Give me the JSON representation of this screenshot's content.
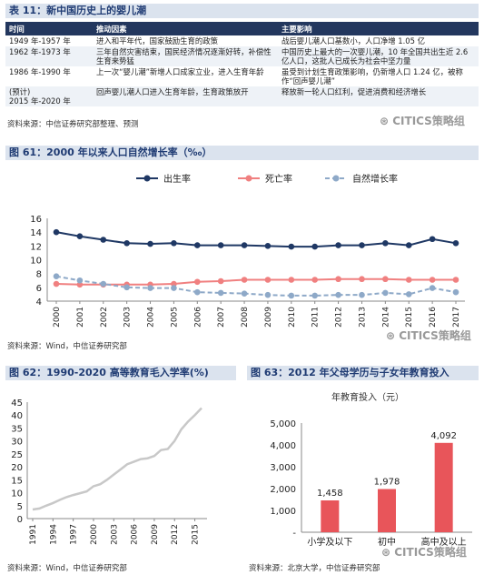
{
  "table": {
    "title": "表 11：新中国历史上的婴儿潮",
    "headers": [
      "时间",
      "推动因素",
      "主要影响"
    ],
    "rows": [
      [
        "1949 年-1957 年",
        "进入和平年代，国家鼓励生育的政策",
        "战后婴儿潮人口基数小，人口净增 1.05 亿"
      ],
      [
        "1962 年-1973 年",
        "三年自然灾害结束，国民经济情况逐渐好转，补偿性生育来势猛",
        "中国历史上最大的一次婴儿潮，10 年全国共出生近 2.6 亿人口，这批人已成长为社会中坚力量"
      ],
      [
        "1986 年-1990 年",
        "上一次“婴儿潮”新增人口成家立业，进入生育年龄",
        "虽受到计划生育政策影响，仍新增人口 1.24 亿，被称作“回声婴儿潮”"
      ],
      [
        "(预计)\n2015 年-2020 年",
        "回声婴儿潮人口进入生育年龄，生育政策放开",
        "释放新一轮人口红利，促进消费和经济增长"
      ]
    ],
    "source": "资料来源：中信证券研究部整理、预测"
  },
  "watermarks": [
    "CITICS策略组",
    "CITICS策略组",
    "CITICS策略组"
  ],
  "chart_data": [
    {
      "type": "line",
      "title": "图 61：2000 年以来人口自然增长率（‰）",
      "x": [
        "2000",
        "2001",
        "2002",
        "2003",
        "2004",
        "2005",
        "2006",
        "2007",
        "2008",
        "2009",
        "2010",
        "2011",
        "2012",
        "2013",
        "2014",
        "2015",
        "2016",
        "2017"
      ],
      "series": [
        {
          "name": "出生率",
          "color": "#1f3864",
          "dash": "none",
          "values": [
            14.0,
            13.4,
            12.9,
            12.4,
            12.3,
            12.4,
            12.1,
            12.1,
            12.1,
            12.0,
            11.9,
            11.9,
            12.1,
            12.1,
            12.4,
            12.1,
            13.0,
            12.4
          ]
        },
        {
          "name": "死亡率",
          "color": "#f08080",
          "dash": "none",
          "values": [
            6.5,
            6.4,
            6.4,
            6.4,
            6.4,
            6.5,
            6.8,
            6.9,
            7.1,
            7.1,
            7.1,
            7.1,
            7.2,
            7.2,
            7.2,
            7.1,
            7.1,
            7.1
          ]
        },
        {
          "name": "自然增长率",
          "color": "#8ea9c8",
          "dash": "5,3",
          "values": [
            7.6,
            7.0,
            6.5,
            6.0,
            5.9,
            5.9,
            5.3,
            5.2,
            5.1,
            4.9,
            4.8,
            4.8,
            4.9,
            4.9,
            5.2,
            5.0,
            5.9,
            5.3
          ]
        }
      ],
      "ylim": [
        4,
        16
      ],
      "yticks": [
        4,
        6,
        8,
        10,
        12,
        14,
        16
      ],
      "grid": false,
      "legend": "top-center",
      "source": "资料来源：Wind，中信证券研究部"
    },
    {
      "type": "line",
      "title": "图 62：1990-2020 高等教育毛入学率(%)",
      "x": [
        1991,
        1992,
        1993,
        1994,
        1995,
        1996,
        1997,
        1998,
        1999,
        2000,
        2001,
        2002,
        2003,
        2004,
        2005,
        2006,
        2007,
        2008,
        2009,
        2010,
        2011,
        2012,
        2013,
        2014,
        2015,
        2016
      ],
      "xticks": [
        "1991",
        "1994",
        "1997",
        "2000",
        "2003",
        "2006",
        "2009",
        "2012",
        "2015"
      ],
      "series": [
        {
          "name": "",
          "color": "#c8c8c8",
          "values": [
            3.5,
            3.9,
            5.0,
            6.0,
            7.2,
            8.3,
            9.1,
            9.8,
            10.5,
            12.5,
            13.3,
            15.0,
            17.0,
            19.0,
            21.0,
            22.0,
            23.0,
            23.3,
            24.2,
            26.5,
            26.9,
            30.0,
            34.5,
            37.5,
            40.0,
            42.7
          ]
        }
      ],
      "ylim": [
        0,
        45
      ],
      "yticks": [
        0,
        5,
        10,
        15,
        20,
        25,
        30,
        35,
        40,
        45
      ],
      "source": "资料来源：Wind，中信证券研究部"
    },
    {
      "type": "bar",
      "title": "图 63：2012 年父母学历与子女年教育投入",
      "subtitle": "年教育投入（元）",
      "categories": [
        "小学及以下",
        "初中",
        "高中及以上"
      ],
      "values": [
        1458,
        1978,
        4092
      ],
      "value_labels": [
        "1,458",
        "1,978",
        "4,092"
      ],
      "ylim": [
        0,
        5000
      ],
      "yticks": [
        "-",
        "1,000",
        "2,000",
        "3,000",
        "4,000",
        "5,000"
      ],
      "bar_color": "#e8555a",
      "source": "资料来源：北京大学，中信证券研究部"
    }
  ]
}
